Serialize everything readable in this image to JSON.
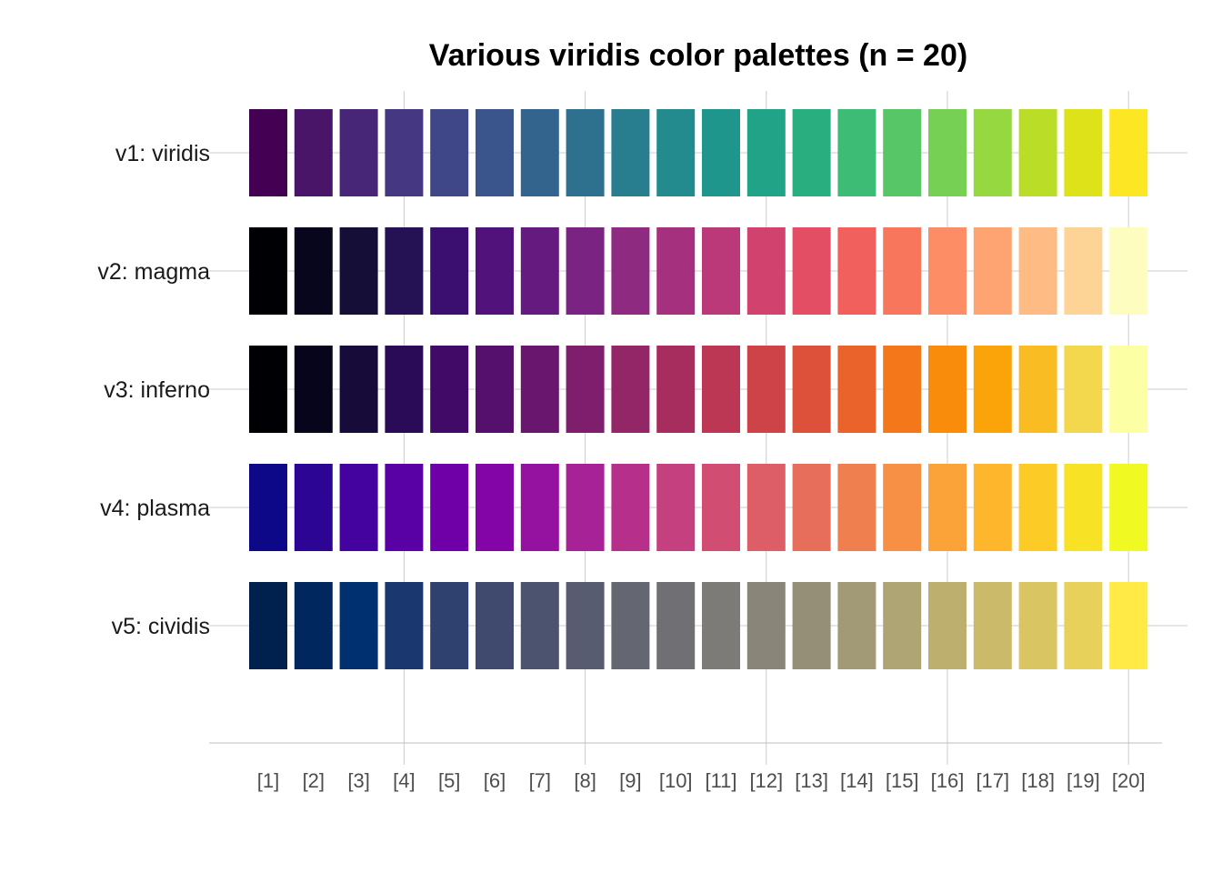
{
  "chart_data": {
    "type": "heatmap",
    "title": "Various viridis color palettes (n = 20)",
    "xlabel": "",
    "ylabel": "",
    "categories": [
      "[1]",
      "[2]",
      "[3]",
      "[4]",
      "[5]",
      "[6]",
      "[7]",
      "[8]",
      "[9]",
      "[10]",
      "[11]",
      "[12]",
      "[13]",
      "[14]",
      "[15]",
      "[16]",
      "[17]",
      "[18]",
      "[19]",
      "[20]"
    ],
    "x_major_ticks": [
      4,
      8,
      12,
      16,
      20
    ],
    "grid": true,
    "series": [
      {
        "name": "v1: viridis",
        "colors": [
          "#440154",
          "#481568",
          "#482677",
          "#453781",
          "#3F4788",
          "#39558C",
          "#32648E",
          "#2D718E",
          "#287D8E",
          "#238A8D",
          "#1F968B",
          "#20A386",
          "#29AF7F",
          "#3CBC75",
          "#56C667",
          "#75D054",
          "#95D840",
          "#BADE28",
          "#DDE318",
          "#FDE725"
        ]
      },
      {
        "name": "v2: magma",
        "colors": [
          "#000004",
          "#07061C",
          "#150E37",
          "#251255",
          "#3B0F70",
          "#51127C",
          "#651A80",
          "#7B2382",
          "#8F2A81",
          "#A5317E",
          "#BB3978",
          "#D1426F",
          "#E34E65",
          "#F1605D",
          "#F8765C",
          "#FC8D64",
          "#FEA473",
          "#FEBB84",
          "#FDD396",
          "#FCFDBF"
        ]
      },
      {
        "name": "v3: inferno",
        "colors": [
          "#000004",
          "#07051B",
          "#160B39",
          "#2A0B57",
          "#410A67",
          "#550F6D",
          "#69166E",
          "#7E1E6C",
          "#932667",
          "#A72D5F",
          "#BB3754",
          "#CD4347",
          "#DD513A",
          "#EA632A",
          "#F4771A",
          "#F98C0A",
          "#FBA40A",
          "#F9BD23",
          "#F3D74C",
          "#FCFFA4"
        ]
      },
      {
        "name": "v4: plasma",
        "colors": [
          "#0D0887",
          "#2D0594",
          "#44039E",
          "#5901A5",
          "#6F00A8",
          "#8305A7",
          "#9512A1",
          "#A72197",
          "#B6308B",
          "#C5407E",
          "#D14E72",
          "#DD5E66",
          "#E76E5B",
          "#EF7F4F",
          "#F79044",
          "#FBA238",
          "#FEB72D",
          "#FDCB26",
          "#F7E225",
          "#F0F921"
        ]
      },
      {
        "name": "v5: cividis",
        "colors": [
          "#00204D",
          "#00285E",
          "#00306F",
          "#1A386F",
          "#2F416F",
          "#3F4A6E",
          "#4C536F",
          "#585C70",
          "#646672",
          "#6F6F74",
          "#7C7B78",
          "#898579",
          "#958F78",
          "#A29A76",
          "#AFA473",
          "#BDAF6E",
          "#CBBA69",
          "#D9C562",
          "#E8D15A",
          "#FFEA46"
        ]
      }
    ]
  }
}
